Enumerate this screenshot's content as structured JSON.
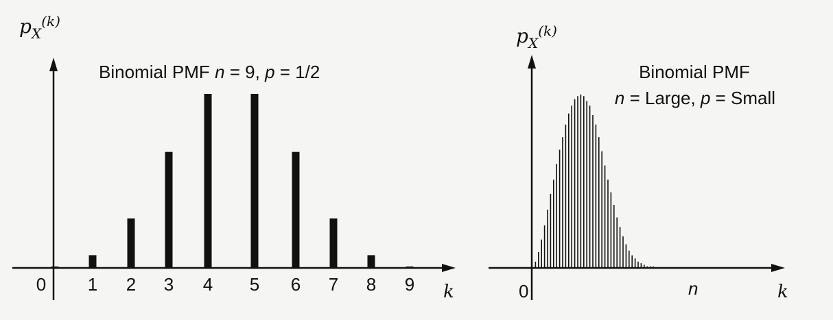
{
  "chart_data": [
    {
      "type": "bar",
      "title": "Binomial PMF",
      "title_params": [
        {
          "name": "n",
          "eq": " = 9, "
        },
        {
          "name": "p",
          "eq": " = 1/2"
        }
      ],
      "ylabel": {
        "base": "p",
        "sub": "X",
        "arg": "(k)"
      },
      "xlabel": "k",
      "categories": [
        "0",
        "1",
        "2",
        "3",
        "4",
        "5",
        "6",
        "7",
        "8",
        "9"
      ],
      "x": [
        0,
        1,
        2,
        3,
        4,
        5,
        6,
        7,
        8,
        9
      ],
      "values": [
        0.002,
        0.018,
        0.07,
        0.164,
        0.246,
        0.246,
        0.164,
        0.07,
        0.018,
        0.002
      ],
      "ylim": [
        0,
        0.3
      ],
      "grid": false,
      "color": "#111111"
    },
    {
      "type": "bar",
      "title_line1": "Binomial PMF",
      "title_line2": [
        {
          "name": "n",
          "eq": " = Large, "
        },
        {
          "name": "p",
          "eq": " = Small"
        }
      ],
      "ylabel": {
        "base": "p",
        "sub": "X",
        "arg": "(k)"
      },
      "xlabel": "k",
      "x_origin_label": "0",
      "x_n_label": "n",
      "x": [
        0,
        1,
        2,
        3,
        4,
        5,
        6,
        7,
        8,
        9,
        10,
        11,
        12,
        13,
        14,
        15,
        16,
        17,
        18,
        19,
        20,
        21,
        22,
        23,
        24,
        25,
        26,
        27,
        28,
        29,
        30,
        31,
        32,
        33,
        34,
        35,
        36,
        37,
        38,
        39,
        40,
        41,
        42,
        43,
        44,
        45,
        46,
        47,
        48,
        49,
        50,
        51,
        52,
        53,
        54,
        55,
        56,
        57,
        58,
        59
      ],
      "values": [
        0.0,
        0.004,
        0.01,
        0.018,
        0.027,
        0.037,
        0.047,
        0.056,
        0.066,
        0.075,
        0.083,
        0.091,
        0.098,
        0.103,
        0.107,
        0.109,
        0.11,
        0.109,
        0.106,
        0.103,
        0.097,
        0.091,
        0.083,
        0.074,
        0.065,
        0.056,
        0.048,
        0.04,
        0.032,
        0.026,
        0.02,
        0.015,
        0.011,
        0.008,
        0.006,
        0.004,
        0.003,
        0.002,
        0.001,
        0.001,
        0.001,
        0.0,
        0.0,
        0.0,
        0.0,
        0.0,
        0.0,
        0.0,
        0.0,
        0.0,
        0.0,
        0.0,
        0.0,
        0.0,
        0.0,
        0.0,
        0.0,
        0.0,
        0.0,
        0.0
      ],
      "ylim": [
        0,
        0.13
      ],
      "grid": false,
      "color": "#111111"
    }
  ]
}
